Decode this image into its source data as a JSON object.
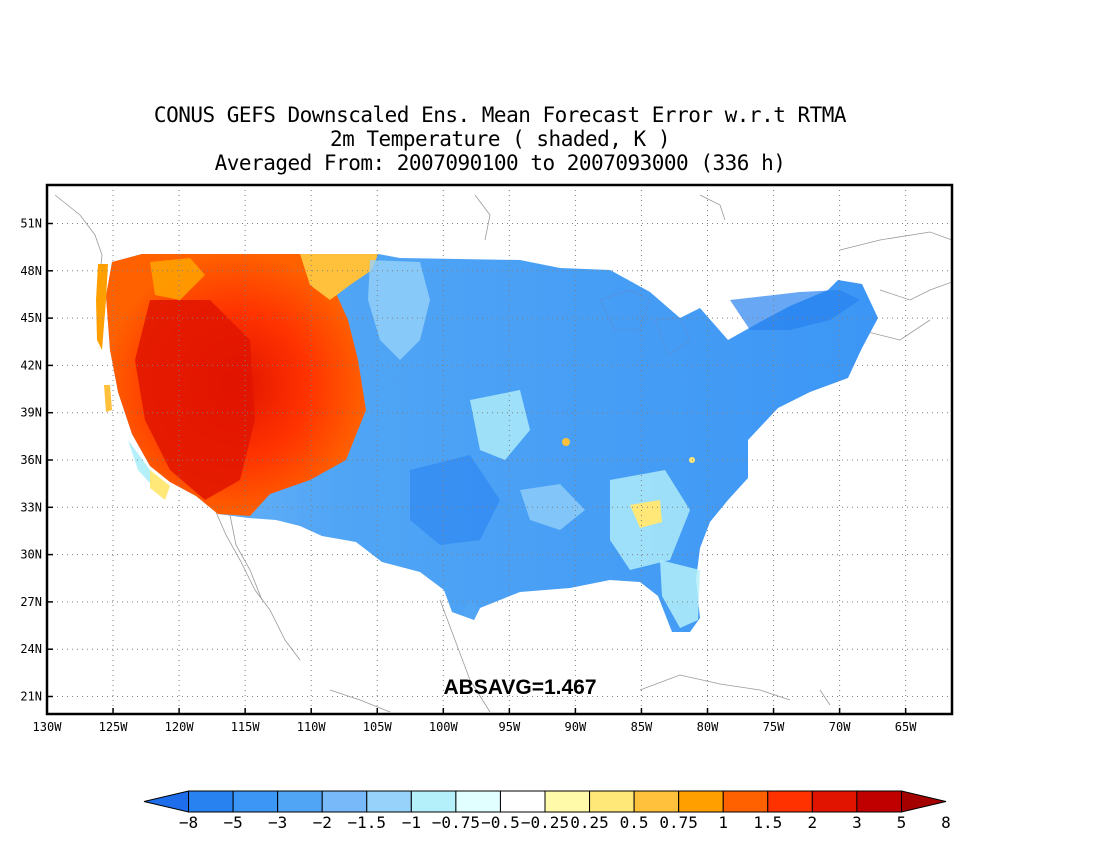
{
  "title": {
    "line1": "CONUS GEFS Downscaled Ens. Mean Forecast Error w.r.t RTMA",
    "line2": "2m Temperature ( shaded, K )",
    "line3": "Averaged From: 2007090100 to 2007093000 (336 h)"
  },
  "map": {
    "lon_labels": [
      "130W",
      "125W",
      "120W",
      "115W",
      "110W",
      "105W",
      "100W",
      "95W",
      "90W",
      "85W",
      "80W",
      "75W",
      "70W",
      "65W"
    ],
    "lat_labels": [
      "51N",
      "48N",
      "45N",
      "42N",
      "39N",
      "36N",
      "33N",
      "30N",
      "27N",
      "24N",
      "21N"
    ],
    "statistic": "ABSAVG=1.467",
    "grid_lines": true
  },
  "colorbar": {
    "labels": [
      "-8",
      "-5",
      "-3",
      "-2",
      "-1.5",
      "-1",
      "-0.75",
      "-0.5",
      "-0.25",
      "0.25",
      "0.5",
      "0.75",
      "1",
      "1.5",
      "2",
      "3",
      "5",
      "8"
    ],
    "colors": [
      "#1e6eeb",
      "#2882f0",
      "#3c96f5",
      "#50a5f5",
      "#78b9fa",
      "#96d2fa",
      "#b4f0fa",
      "#e1ffff",
      "#ffffff",
      "#fffaaa",
      "#ffe878",
      "#ffc03c",
      "#ffa000",
      "#ff6000",
      "#ff3200",
      "#e11400",
      "#c00000",
      "#a50000"
    ]
  }
}
